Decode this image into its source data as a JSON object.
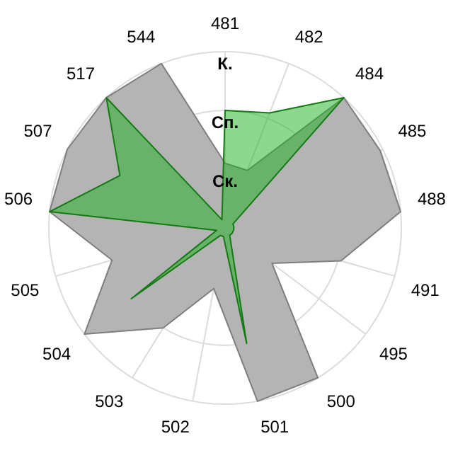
{
  "chart_data": {
    "type": "radar",
    "categories": [
      "481",
      "482",
      "484",
      "485",
      "488",
      "491",
      "495",
      "500",
      "501",
      "502",
      "503",
      "504",
      "505",
      "506",
      "507",
      "517",
      "544"
    ],
    "series": [
      {
        "color": "#b4b4b4",
        "values": [
          1.1,
          1.05,
          3,
          2.95,
          3,
          2.05,
          1,
          3,
          3,
          1.05,
          2,
          3,
          2,
          3,
          3,
          3,
          3
        ]
      },
      {
        "color": "#1daf1d",
        "values": [
          2,
          2.1,
          3,
          0.15,
          0.15,
          0.15,
          0.15,
          0.15,
          2,
          0.15,
          0.15,
          2,
          0.15,
          3,
          2,
          3,
          0.15
        ]
      }
    ],
    "ylim": [
      0,
      3
    ],
    "yticks": [
      {
        "value": 1,
        "label": "Ск."
      },
      {
        "value": 2,
        "label": "Сп."
      },
      {
        "value": 3,
        "label": "К."
      }
    ],
    "grid": true,
    "legend": false
  }
}
